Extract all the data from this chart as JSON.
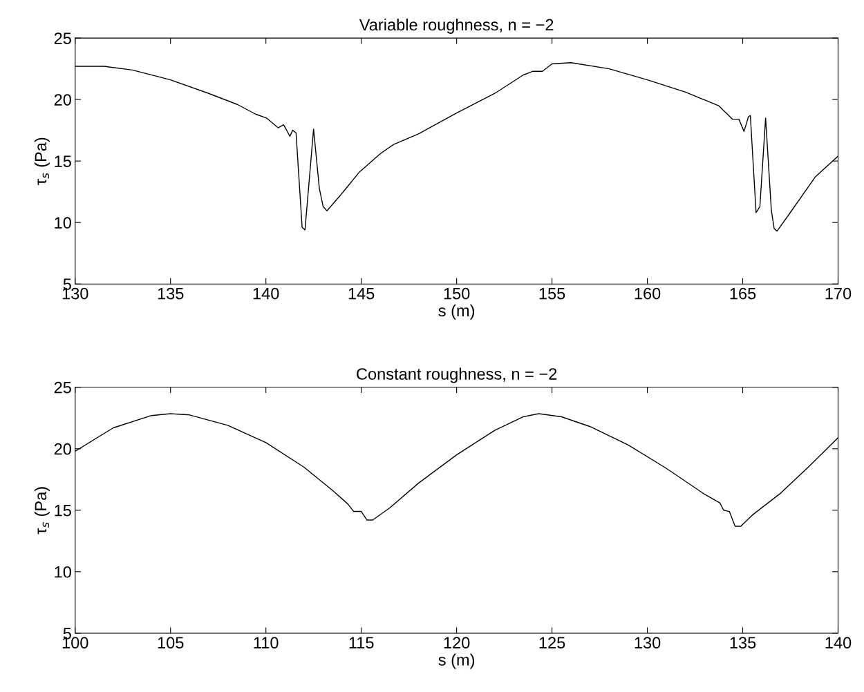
{
  "chart_data": [
    {
      "type": "line",
      "title": "Variable roughness, n = −2",
      "xlabel": "s (m)",
      "ylabel": "τ$_{s}$ (Pa)",
      "x": [
        130,
        131.5,
        133,
        135,
        137,
        138.5,
        139.48,
        140.03,
        140.64,
        140.93,
        141.26,
        141.4,
        141.58,
        141.9,
        142.05,
        142.5,
        142.8,
        143.0,
        143.2,
        143.9,
        144.9,
        146.0,
        146.7,
        148,
        150,
        152,
        153.5,
        154,
        154.5,
        155,
        156,
        158,
        160,
        162,
        163.74,
        164.46,
        164.8,
        165.07,
        165.3,
        165.4,
        165.7,
        165.9,
        166.2,
        166.5,
        166.65,
        166.8,
        167.4,
        168.8,
        170
      ],
      "series": [
        {
          "color": "#000000",
          "values": [
            22.7,
            22.7,
            22.4,
            21.6,
            20.5,
            19.6,
            18.8,
            18.5,
            17.7,
            17.95,
            17.0,
            17.5,
            17.3,
            9.6,
            9.4,
            17.6,
            12.8,
            11.3,
            10.95,
            12.2,
            14.1,
            15.6,
            16.35,
            17.2,
            18.9,
            20.5,
            22.0,
            22.3,
            22.3,
            22.9,
            23.0,
            22.5,
            21.6,
            20.6,
            19.5,
            18.4,
            18.4,
            17.4,
            18.6,
            18.7,
            10.8,
            11.3,
            18.5,
            11.0,
            9.5,
            9.3,
            10.6,
            13.7,
            15.4
          ]
        }
      ],
      "xlim": [
        130,
        170
      ],
      "ylim": [
        5,
        25
      ],
      "xticks": [
        130,
        135,
        140,
        145,
        150,
        155,
        160,
        165,
        170
      ],
      "yticks": [
        5,
        10,
        15,
        20,
        25
      ],
      "grid": false,
      "legend": false
    },
    {
      "type": "line",
      "title": "Constant roughness, n = −2",
      "xlabel": "s (m)",
      "ylabel": "τ$_{s}$ (Pa)",
      "x": [
        100,
        102,
        104,
        105,
        106,
        108,
        110,
        112,
        113.5,
        114.3,
        114.6,
        115,
        115.3,
        115.6,
        116.5,
        118,
        120,
        122,
        123.5,
        124.3,
        125.5,
        127,
        129,
        131,
        133,
        133.8,
        134.0,
        134.3,
        134.6,
        134.9,
        135.5,
        137,
        138.5,
        140
      ],
      "series": [
        {
          "color": "#000000",
          "values": [
            19.8,
            21.7,
            22.7,
            22.85,
            22.75,
            21.9,
            20.5,
            18.5,
            16.6,
            15.5,
            14.9,
            14.9,
            14.2,
            14.2,
            15.2,
            17.2,
            19.5,
            21.5,
            22.6,
            22.85,
            22.6,
            21.8,
            20.3,
            18.4,
            16.3,
            15.6,
            15.0,
            14.9,
            13.7,
            13.7,
            14.6,
            16.4,
            18.6,
            20.9
          ]
        }
      ],
      "xlim": [
        100,
        140
      ],
      "ylim": [
        5,
        25
      ],
      "xticks": [
        100,
        105,
        110,
        115,
        120,
        125,
        130,
        135,
        140
      ],
      "yticks": [
        5,
        10,
        15,
        20,
        25
      ],
      "grid": false,
      "legend": false
    }
  ]
}
